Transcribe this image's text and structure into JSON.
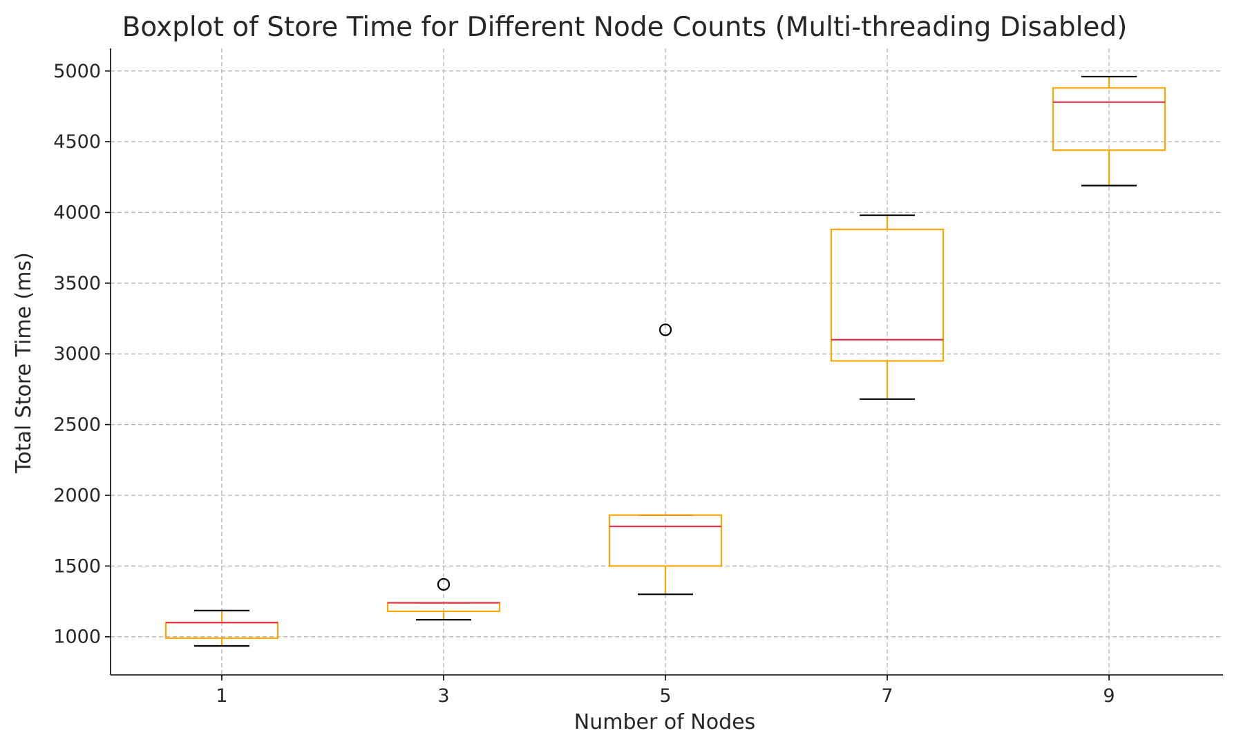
{
  "chart_data": {
    "type": "boxplot",
    "title": "Boxplot of Store Time for Different Node Counts (Multi-threading Disabled)",
    "xlabel": "Number of Nodes",
    "ylabel": "Total Store Time (ms)",
    "categories": [
      "1",
      "3",
      "5",
      "7",
      "9"
    ],
    "ylim": [
      730,
      5160
    ],
    "yticks": [
      1000,
      1500,
      2000,
      2500,
      3000,
      3500,
      4000,
      4500,
      5000
    ],
    "grid": true,
    "colors": {
      "box": "#ffa500",
      "median": "#e8304a",
      "cap": "#000000",
      "flier": "#000000"
    },
    "boxes": [
      {
        "category": "1",
        "whisker_low": 935,
        "q1": 990,
        "median": 1100,
        "q3": 1100,
        "whisker_high": 1185,
        "fliers": []
      },
      {
        "category": "3",
        "whisker_low": 1120,
        "q1": 1180,
        "median": 1240,
        "q3": 1240,
        "whisker_high": 1240,
        "fliers": [
          1370
        ]
      },
      {
        "category": "5",
        "whisker_low": 1300,
        "q1": 1500,
        "median": 1780,
        "q3": 1860,
        "whisker_high": 1860,
        "fliers": [
          3170
        ]
      },
      {
        "category": "7",
        "whisker_low": 2680,
        "q1": 2950,
        "median": 3100,
        "q3": 3880,
        "whisker_high": 3980,
        "fliers": []
      },
      {
        "category": "9",
        "whisker_low": 4190,
        "q1": 4440,
        "median": 4780,
        "q3": 4880,
        "whisker_high": 4960,
        "fliers": []
      }
    ]
  }
}
